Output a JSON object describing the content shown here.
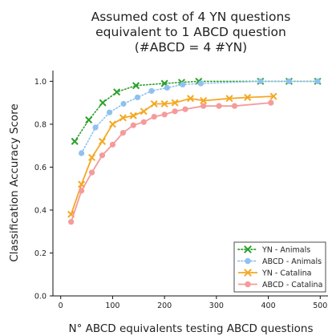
{
  "chart_data": {
    "type": "line",
    "title_lines": [
      "Assumed cost of 4 YN questions",
      "equivalent to 1 ABCD question",
      "(#ABCD = 4 #YN)"
    ],
    "xlabel": "N° ABCD equivalents testing ABCD questions",
    "ylabel": "Classification Accuracy Score",
    "xlim": [
      -15,
      515
    ],
    "ylim": [
      0.0,
      1.05
    ],
    "xticks": [
      0,
      100,
      200,
      300,
      400,
      500
    ],
    "yticks": [
      0.0,
      0.2,
      0.4,
      0.6,
      0.8,
      1.0
    ],
    "ytick_labels": [
      "0.0",
      "0.2",
      "0.4",
      "0.6",
      "0.8",
      "1.0"
    ],
    "grid": false,
    "legend_position": "lower-right",
    "series": [
      {
        "name": "YN - Animals",
        "color": "#2ca02c",
        "line_style": "dotted",
        "marker": "x",
        "x": [
          27,
          54,
          81,
          108,
          145,
          200,
          233,
          266,
          385,
          440,
          495
        ],
        "y": [
          0.72,
          0.82,
          0.9,
          0.95,
          0.98,
          0.99,
          0.995,
          1.0,
          1.0,
          1.0,
          1.0
        ]
      },
      {
        "name": "ABCD - Animals",
        "color": "#8fc1f0",
        "line_style": "dotted",
        "marker": "o",
        "x": [
          40,
          67,
          94,
          121,
          148,
          175,
          205,
          235,
          270,
          385,
          440,
          495
        ],
        "y": [
          0.665,
          0.785,
          0.855,
          0.895,
          0.925,
          0.955,
          0.97,
          0.985,
          0.99,
          1.0,
          1.0,
          1.0
        ]
      },
      {
        "name": "YN - Catalina",
        "color": "#f4a825",
        "line_style": "solid",
        "marker": "x",
        "x": [
          20,
          40,
          60,
          80,
          100,
          120,
          140,
          160,
          180,
          200,
          220,
          250,
          275,
          325,
          360,
          410
        ],
        "y": [
          0.38,
          0.52,
          0.645,
          0.72,
          0.8,
          0.83,
          0.84,
          0.86,
          0.895,
          0.895,
          0.9,
          0.92,
          0.91,
          0.92,
          0.925,
          0.93
        ]
      },
      {
        "name": "ABCD - Catalina",
        "color": "#f49b9b",
        "line_style": "solid",
        "marker": "o",
        "x": [
          20,
          40,
          60,
          80,
          100,
          120,
          140,
          160,
          180,
          200,
          220,
          240,
          275,
          305,
          335,
          405
        ],
        "y": [
          0.345,
          0.49,
          0.575,
          0.655,
          0.705,
          0.76,
          0.795,
          0.81,
          0.835,
          0.845,
          0.86,
          0.87,
          0.885,
          0.885,
          0.885,
          0.9
        ]
      }
    ]
  }
}
